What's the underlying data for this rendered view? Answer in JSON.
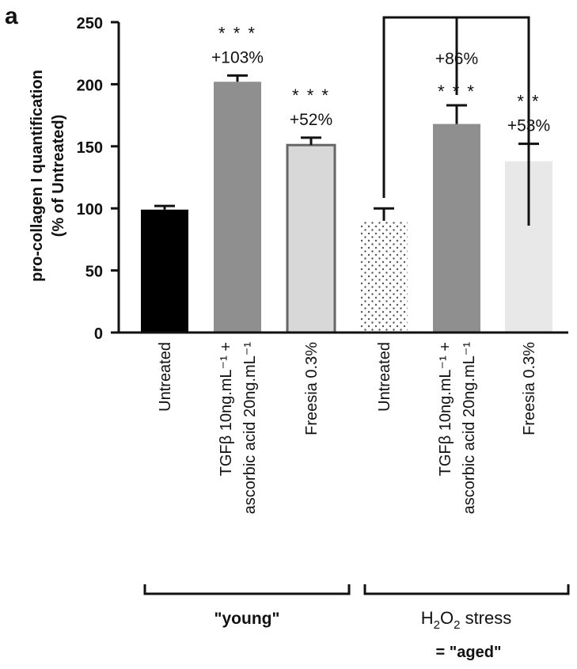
{
  "panel_label": "a",
  "chart_data": {
    "type": "bar",
    "ylabel_line1": "pro-collagen I quantification",
    "ylabel_line2": "(% of Untreated)",
    "ylim": [
      0,
      250
    ],
    "yticks": [
      "0",
      "50",
      "100",
      "150",
      "200",
      "250"
    ],
    "ytick_values": [
      0,
      50,
      100,
      150,
      200,
      250
    ],
    "categories": [
      {
        "label_lines": [
          "Untreated"
        ],
        "value": 99,
        "error": 3,
        "color": "#000000",
        "pattern": "solid",
        "annotations": []
      },
      {
        "label_lines": [
          "TGFβ 10ng.mL⁻¹ +",
          "ascorbic acid 20ng.mL⁻¹"
        ],
        "value": 202,
        "error": 5,
        "color": "#8f8f8f",
        "pattern": "solid",
        "annotations": [
          "* * *",
          "+103%"
        ]
      },
      {
        "label_lines": [
          "Freesia 0.3%"
        ],
        "value": 151,
        "error": 6,
        "color": "#d8d8d8",
        "pattern": "solid-outlined",
        "annotations": [
          "* * *",
          "+52%"
        ]
      },
      {
        "label_lines": [
          "Untreated"
        ],
        "value": 90,
        "error": 10,
        "color": "#ffffff",
        "pattern": "dotted",
        "annotations": []
      },
      {
        "label_lines": [
          "TGFβ 10ng.mL⁻¹ +",
          "ascorbic acid 20ng.mL⁻¹"
        ],
        "value": 168,
        "error": 15,
        "color": "#8f8f8f",
        "pattern": "solid",
        "annotations": [
          "+86%",
          "* * *"
        ]
      },
      {
        "label_lines": [
          "Freesia 0.3%"
        ],
        "value": 138,
        "error": 14,
        "color": "#e8e8e8",
        "pattern": "solid",
        "annotations": [
          "* *",
          "+53%"
        ]
      }
    ],
    "groups": [
      {
        "label": "\"young\"",
        "from_bar": 0,
        "to_bar": 2
      },
      {
        "label_main": "H",
        "label_sub1": "2",
        "label_mid": "O",
        "label_sub2": "2",
        "label_rest": " stress",
        "label_line2": "= \"aged\"",
        "from_bar": 3,
        "to_bar": 5
      }
    ],
    "grid": false,
    "legend": "none"
  }
}
